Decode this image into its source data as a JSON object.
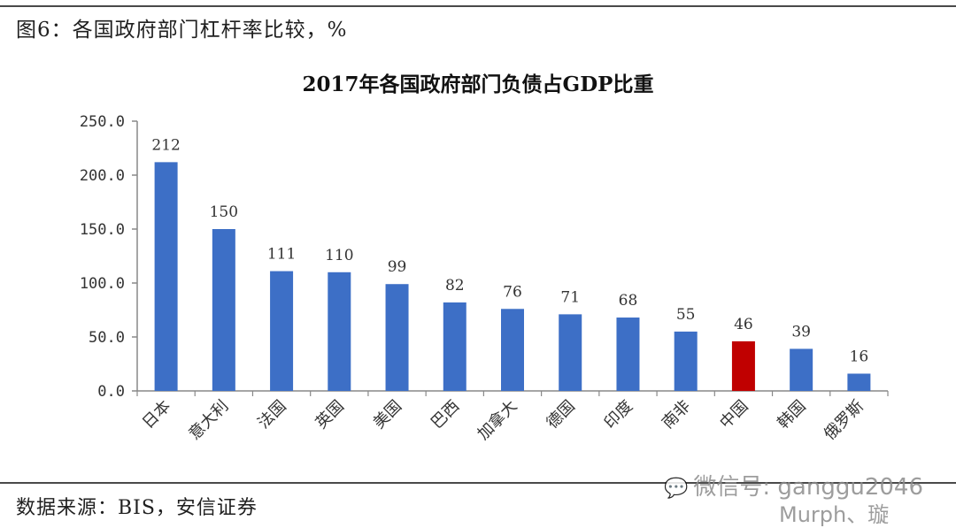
{
  "figure_title": "图6：各国政府部门杠杆率比较，%",
  "source_note": "数据来源：BIS，安信证券",
  "watermark": {
    "line1": "微信号: ganggu2046",
    "line2": "Murph、璇",
    "icon": "wechat-icon"
  },
  "colors": {
    "bar": "#3d6fc6",
    "highlight": "#c00000",
    "axis": "#888888"
  },
  "chart_data": {
    "type": "bar",
    "title": "2017年各国政府部门负债占GDP比重",
    "xlabel": "",
    "ylabel": "",
    "categories": [
      "日本",
      "意大利",
      "法国",
      "英国",
      "美国",
      "巴西",
      "加拿大",
      "德国",
      "印度",
      "南非",
      "中国",
      "韩国",
      "俄罗斯"
    ],
    "values": [
      212,
      150,
      111,
      110,
      99,
      82,
      76,
      71,
      68,
      55,
      46,
      39,
      16
    ],
    "highlight_category": "中国",
    "ylim": [
      0,
      250
    ],
    "yticks": [
      "0.0",
      "50.0",
      "100.0",
      "150.0",
      "200.0",
      "250.0"
    ],
    "grid": false,
    "legend": "none"
  }
}
